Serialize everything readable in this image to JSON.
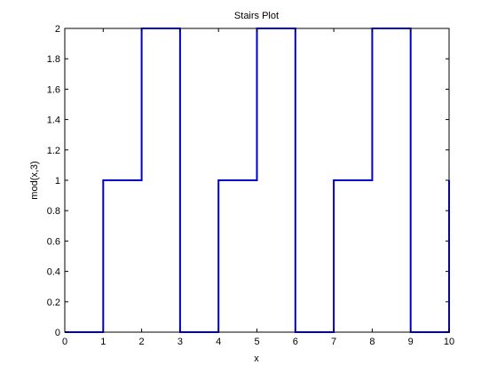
{
  "chart_data": {
    "type": "line",
    "style": "stairs",
    "title": "Stairs Plot",
    "xlabel": "x",
    "ylabel": "mod(x,3)",
    "xlim": [
      0,
      10
    ],
    "ylim": [
      0,
      2
    ],
    "xticks": [
      0,
      1,
      2,
      3,
      4,
      5,
      6,
      7,
      8,
      9,
      10
    ],
    "yticks": [
      0,
      0.2,
      0.4,
      0.6,
      0.8,
      1,
      1.2,
      1.4,
      1.6,
      1.8,
      2
    ],
    "xtick_labels": [
      "0",
      "1",
      "2",
      "3",
      "4",
      "5",
      "6",
      "7",
      "8",
      "9",
      "10"
    ],
    "ytick_labels": [
      "0",
      "0.2",
      "0.4",
      "0.6",
      "0.8",
      "1",
      "1.2",
      "1.4",
      "1.6",
      "1.8",
      "2"
    ],
    "grid": false,
    "series": [
      {
        "color": "#0000cc",
        "x": [
          0,
          1,
          2,
          3,
          4,
          5,
          6,
          7,
          8,
          9,
          10
        ],
        "y": [
          0,
          1,
          2,
          0,
          1,
          2,
          0,
          1,
          2,
          0,
          1
        ]
      }
    ]
  }
}
